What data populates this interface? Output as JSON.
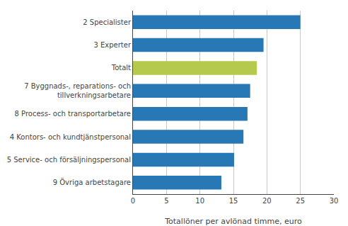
{
  "chart_data": {
    "type": "bar",
    "orientation": "horizontal",
    "categories": [
      "9 Övriga arbetstagare",
      "5 Service- och försäljningspersonal",
      "4 Kontors- och kundtjänstpersonal",
      "8 Process- och transportarbetare",
      "7 Byggnads-, reparations- och\ntillverkningsarbetare",
      "Totalt",
      "3 Experter",
      "2 Specialister"
    ],
    "values": [
      13.2,
      15.1,
      16.5,
      17.1,
      17.5,
      18.5,
      19.5,
      25.0
    ],
    "colors": [
      "#2878b5",
      "#2878b5",
      "#2878b5",
      "#2878b5",
      "#2878b5",
      "#b5c94c",
      "#2878b5",
      "#2878b5"
    ],
    "xlabel": "Totallöner per avlönad timme, euro",
    "xlim": [
      0,
      30
    ],
    "xticks": [
      0,
      5,
      10,
      15,
      20,
      25,
      30
    ],
    "grid": true
  }
}
